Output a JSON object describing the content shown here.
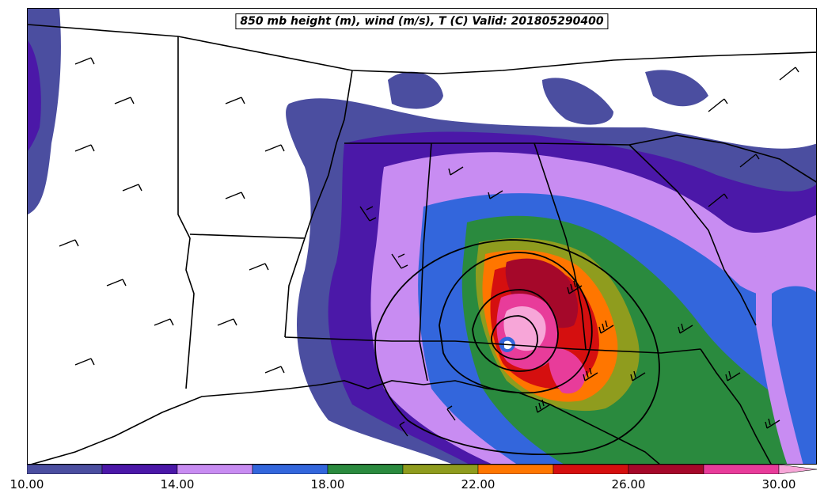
{
  "title": "850 mb height (m), wind (m/s), T (C) Valid: 201805290400",
  "colorbar": {
    "labels": [
      "10.00",
      "14.00",
      "18.00",
      "22.00",
      "26.00",
      "30.00"
    ],
    "colors": [
      "#4b4ea0",
      "#4b18a8",
      "#c88cf2",
      "#3366dc",
      "#2a8a3e",
      "#8f9c1e",
      "#ff7600",
      "#d50f0f",
      "#a5082a",
      "#e83c9a",
      "#f7a6d8"
    ]
  },
  "colors": {
    "background": "#ffffff",
    "borders": "#000000"
  }
}
